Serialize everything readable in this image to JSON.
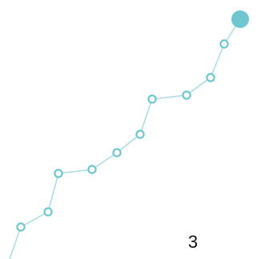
{
  "page": {
    "number": "3"
  },
  "decoration": {
    "accent_color": "#6fc6cf",
    "line_color": "#a8dde2",
    "marker_fill": "#ffffff"
  }
}
